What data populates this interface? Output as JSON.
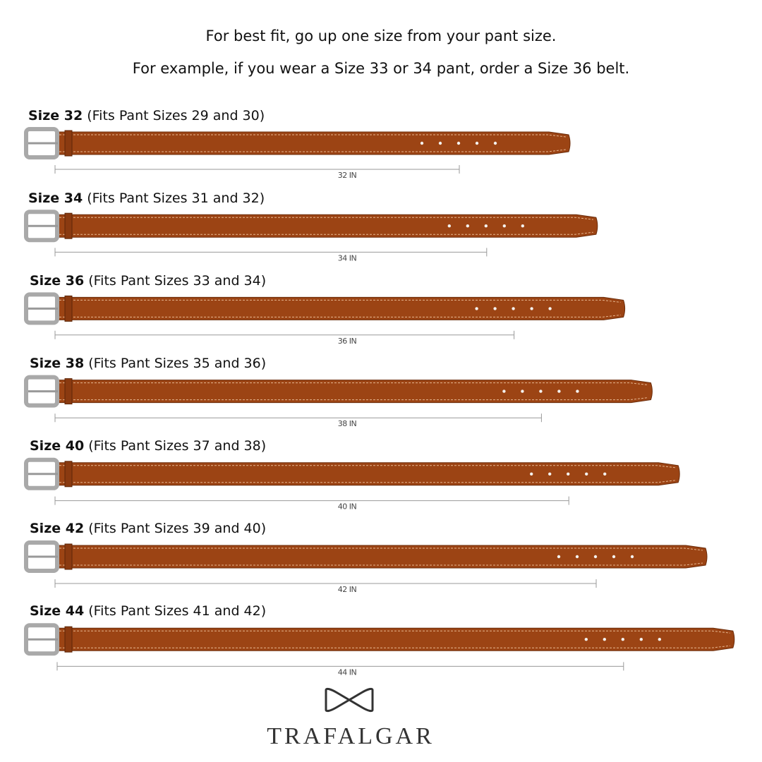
{
  "header": {
    "lines": [
      "For best fit, go up one size from your pant size.",
      "For example, if you wear a Size 33 or 34 pant, order a Size 36 belt."
    ]
  },
  "rows": [
    {
      "size": "Size 32",
      "fits": "(Fits Pant Sizes 29 and 30)",
      "measure": "32 IN"
    },
    {
      "size": "Size 34",
      "fits": "(Fits Pant Sizes 31 and 32)",
      "measure": "34 IN"
    },
    {
      "size": "Size 36",
      "fits": "(Fits Pant Sizes 33 and 34)",
      "measure": "36 IN"
    },
    {
      "size": "Size 38",
      "fits": "(Fits Pant Sizes 35 and 36)",
      "measure": "38 IN"
    },
    {
      "size": "Size 40",
      "fits": "(Fits Pant Sizes 37 and 38)",
      "measure": "40 IN"
    },
    {
      "size": "Size 42",
      "fits": "(Fits Pant Sizes 39 and 40)",
      "measure": "42 IN"
    },
    {
      "size": "Size 44",
      "fits": "(Fits Pant Sizes 41 and 42)",
      "measure": "44 IN"
    }
  ],
  "brand": "TRAFALGAR"
}
